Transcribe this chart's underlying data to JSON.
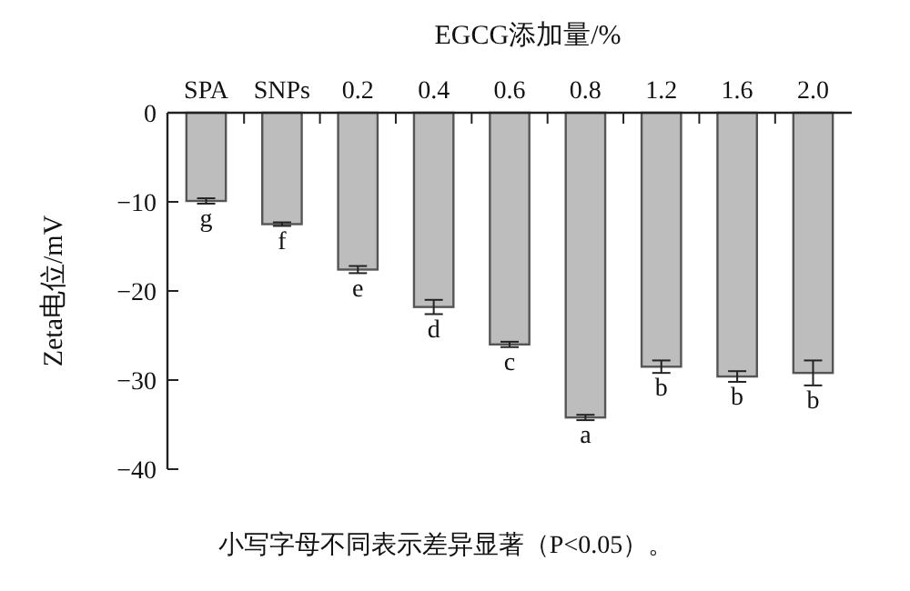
{
  "chart_data": {
    "type": "bar",
    "xlabel": "EGCG添加量/%",
    "ylabel": "Zeta电位/mV",
    "categories": [
      "SPA",
      "SNPs",
      "0.2",
      "0.4",
      "0.6",
      "0.8",
      "1.2",
      "1.6",
      "2.0"
    ],
    "values": [
      -9.9,
      -12.5,
      -17.6,
      -21.8,
      -26.0,
      -34.2,
      -28.5,
      -29.6,
      -29.2
    ],
    "errors": [
      0.3,
      0.2,
      0.4,
      0.8,
      0.3,
      0.3,
      0.7,
      0.6,
      1.4
    ],
    "color": "#bdbdbd",
    "ylim": [
      -40,
      0
    ],
    "yticks": [
      -40,
      -30,
      -20,
      -10,
      0
    ],
    "grid": false,
    "annotations": [
      {
        "text": "g",
        "x": "SPA",
        "y": -10.2
      },
      {
        "text": "f",
        "x": "SNPs",
        "y": -12.7
      },
      {
        "text": "e",
        "x": "0.2",
        "y": -18.0
      },
      {
        "text": "d",
        "x": "0.4",
        "y": -22.6
      },
      {
        "text": "c",
        "x": "0.6",
        "y": -26.3
      },
      {
        "text": "a",
        "x": "0.8",
        "y": -34.5
      },
      {
        "text": "b",
        "x": "1.2",
        "y": -29.2
      },
      {
        "text": "b",
        "x": "1.6",
        "y": -30.2
      },
      {
        "text": "b",
        "x": "2.0",
        "y": -30.6
      },
      "小写字母不同表示差异显著（P<0.05）。"
    ]
  }
}
